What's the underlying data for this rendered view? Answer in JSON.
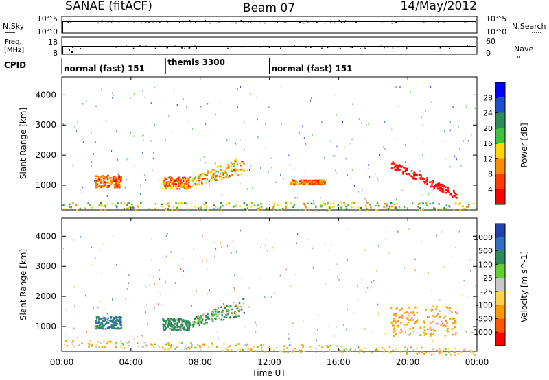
{
  "header": {
    "station": "SANAE (fitACF)",
    "beam": "Beam 07",
    "date": "14/May/2012"
  },
  "top_panels": {
    "nsky_label": "N.Sky",
    "nsky_ticks": [
      "10^5",
      "10^0"
    ],
    "nsearch_label": "N.Search",
    "nsearch_ticks": [
      "10^5",
      "10^0"
    ],
    "freq_label": "Freq.",
    "freq_unit": "[MHz]",
    "freq_ticks": [
      "18",
      "8"
    ],
    "nave_label": "Nave",
    "nave_ticks": [
      "60",
      "0"
    ],
    "cpid_label": "CPID"
  },
  "cpid_segments": [
    {
      "label": "normal (fast) 151",
      "start_h": 0,
      "end_h": 6
    },
    {
      "label": "themis 3300",
      "start_h": 6,
      "end_h": 12
    },
    {
      "label": "normal (fast) 151",
      "start_h": 12,
      "end_h": 24
    }
  ],
  "x_axis": {
    "label": "Time UT",
    "ticks": [
      "00:00",
      "04:00",
      "08:00",
      "12:00",
      "16:00",
      "20:00",
      "00:00"
    ],
    "tick_hours": [
      0,
      4,
      8,
      12,
      16,
      20,
      24
    ]
  },
  "chart_data": [
    {
      "type": "heatmap",
      "name": "power",
      "ylabel": "Slant Range [km]",
      "yticks": [
        "4000",
        "3000",
        "2000",
        "1000"
      ],
      "ytick_values": [
        4000,
        3000,
        2000,
        1000
      ],
      "ylim": [
        180,
        4600
      ],
      "xlim": [
        0,
        24
      ],
      "colorbar": {
        "label": "Power [dB]",
        "ticks": [
          "28",
          "24",
          "20",
          "16",
          "12",
          "8",
          "4"
        ],
        "tick_values": [
          28,
          24,
          20,
          16,
          12,
          8,
          4
        ],
        "range": [
          0,
          30
        ],
        "colors": [
          "#0000ff",
          "#1e4fc8",
          "#2e8b57",
          "#40c040",
          "#ffd700",
          "#ff8c00",
          "#ff3c00",
          "#ff0000"
        ]
      },
      "features": [
        {
          "t_start": 1.9,
          "t_end": 3.4,
          "range_lo": 950,
          "range_hi": 1350,
          "level": 6
        },
        {
          "t_start": 5.8,
          "t_end": 7.4,
          "range_lo": 900,
          "range_hi": 1300,
          "level": 6
        },
        {
          "t_start": 7.5,
          "t_end": 10.5,
          "range_lo": 1000,
          "range_hi": 1950,
          "level": 5
        },
        {
          "t_start": 13.2,
          "t_end": 15.2,
          "range_lo": 1050,
          "range_hi": 1200,
          "level": 6
        },
        {
          "t_start": 19.0,
          "t_end": 22.8,
          "range_lo": 700,
          "range_hi": 1700,
          "level": 8
        },
        {
          "t_start": 0.0,
          "t_end": 24.0,
          "range_lo": 180,
          "range_hi": 450,
          "level": 4
        }
      ]
    },
    {
      "type": "heatmap",
      "name": "velocity",
      "ylabel": "Slant Range [km]",
      "yticks": [
        "4000",
        "3000",
        "2000",
        "1000"
      ],
      "ytick_values": [
        4000,
        3000,
        2000,
        1000
      ],
      "ylim": [
        180,
        4600
      ],
      "xlim": [
        0,
        24
      ],
      "colorbar": {
        "label": "Velocity [m s^-1]",
        "ticks": [
          "1000",
          "500",
          "100",
          "25",
          "-25",
          "-100",
          "-500",
          "-1000"
        ],
        "colors": [
          "#2244aa",
          "#2e6fbf",
          "#2e8b57",
          "#66cc33",
          "#c8c8c8",
          "#ffd24d",
          "#ff9900",
          "#ff5500",
          "#ff0000"
        ]
      },
      "features": [
        {
          "t_start": 1.9,
          "t_end": 3.4,
          "range_lo": 950,
          "range_hi": 1350,
          "velocity": 300
        },
        {
          "t_start": 5.8,
          "t_end": 7.4,
          "range_lo": 900,
          "range_hi": 1300,
          "velocity": 200
        },
        {
          "t_start": 7.5,
          "t_end": 10.5,
          "range_lo": 1000,
          "range_hi": 1950,
          "velocity": 60
        },
        {
          "t_start": 19.0,
          "t_end": 22.8,
          "range_lo": 700,
          "range_hi": 1700,
          "velocity": -300
        },
        {
          "t_start": 0.0,
          "t_end": 24.0,
          "range_lo": 180,
          "range_hi": 450,
          "velocity": -50
        }
      ]
    }
  ]
}
